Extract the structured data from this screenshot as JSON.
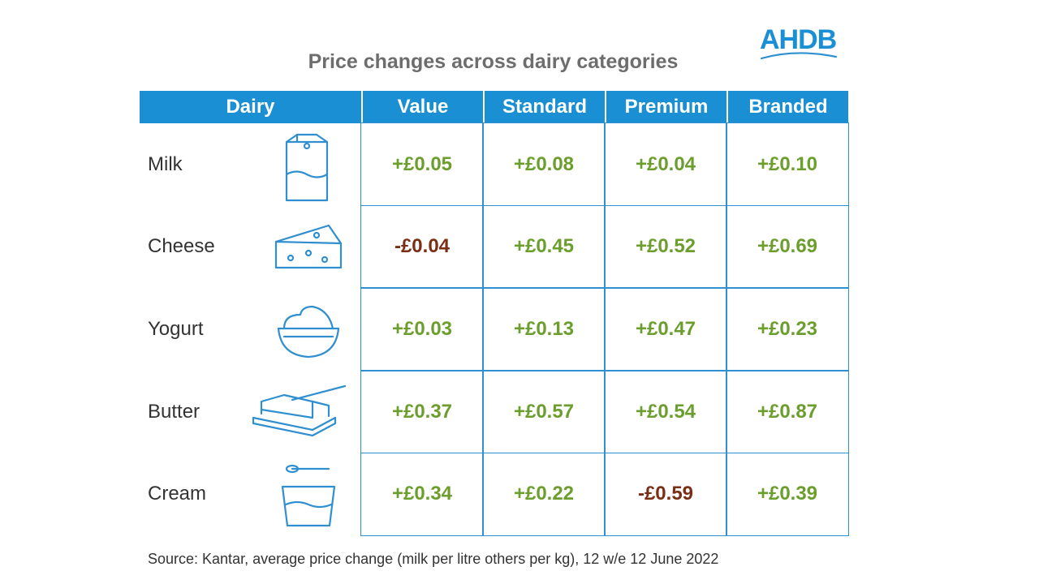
{
  "logo": "AHDB",
  "title": "Price changes across dairy categories",
  "table": {
    "header": [
      "Dairy",
      "Value",
      "Standard",
      "Premium",
      "Branded"
    ],
    "rows": [
      [
        "Milk",
        "+£0.05",
        "+£0.08",
        "+£0.04",
        "+£0.10"
      ],
      [
        "Cheese",
        "-£0.04",
        "+£0.45",
        "+£0.52",
        "+£0.69"
      ],
      [
        "Yogurt",
        "+£0.03",
        "+£0.13",
        "+£0.47",
        "+£0.23"
      ],
      [
        "Butter",
        "+£0.37",
        "+£0.57",
        "+£0.54",
        "+£0.87"
      ],
      [
        "Cream",
        "+£0.34",
        "+£0.22",
        "-£0.59",
        "+£0.39"
      ]
    ],
    "positive_color": "#6b9e2c",
    "negative_color": "#7a2e14"
  },
  "source": "Source: Kantar, average price change (milk per litre others per kg), 12 w/e 12 June 2022"
}
